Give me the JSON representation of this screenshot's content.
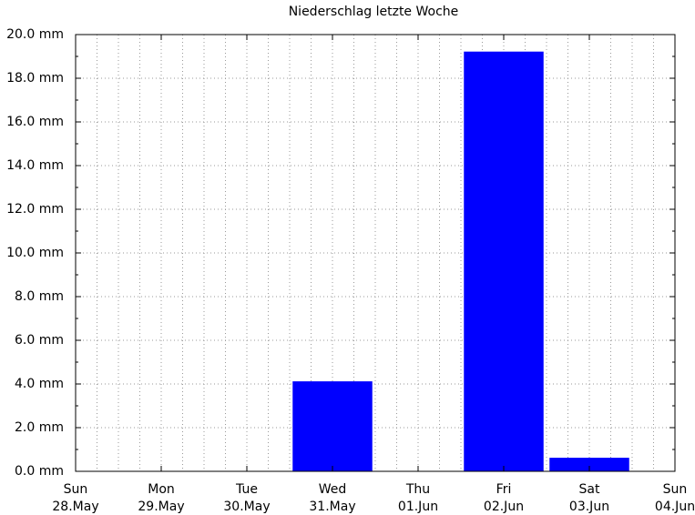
{
  "chart_data": {
    "type": "bar",
    "title": "Niederschlag letzte Woche",
    "categories": [
      [
        "Sun",
        "28.May"
      ],
      [
        "Mon",
        "29.May"
      ],
      [
        "Tue",
        "30.May"
      ],
      [
        "Wed",
        "31.May"
      ],
      [
        "Thu",
        "01.Jun"
      ],
      [
        "Fri",
        "02.Jun"
      ],
      [
        "Sat",
        "03.Jun"
      ],
      [
        "Sun",
        "04.Jun"
      ]
    ],
    "values": [
      0,
      0,
      0,
      4.1,
      0,
      19.2,
      0.6,
      null
    ],
    "color": "#0000ff",
    "ylim": [
      0,
      20
    ],
    "yticks": [
      {
        "value": 0,
        "label": "0.0 mm"
      },
      {
        "value": 2,
        "label": "2.0 mm"
      },
      {
        "value": 4,
        "label": "4.0 mm"
      },
      {
        "value": 6,
        "label": "6.0 mm"
      },
      {
        "value": 8,
        "label": "8.0 mm"
      },
      {
        "value": 10,
        "label": "10.0 mm"
      },
      {
        "value": 12,
        "label": "12.0 mm"
      },
      {
        "value": 14,
        "label": "14.0 mm"
      },
      {
        "value": 16,
        "label": "16.0 mm"
      },
      {
        "value": 18,
        "label": "18.0 mm"
      },
      {
        "value": 20,
        "label": "20.0 mm"
      }
    ],
    "grid": true
  }
}
